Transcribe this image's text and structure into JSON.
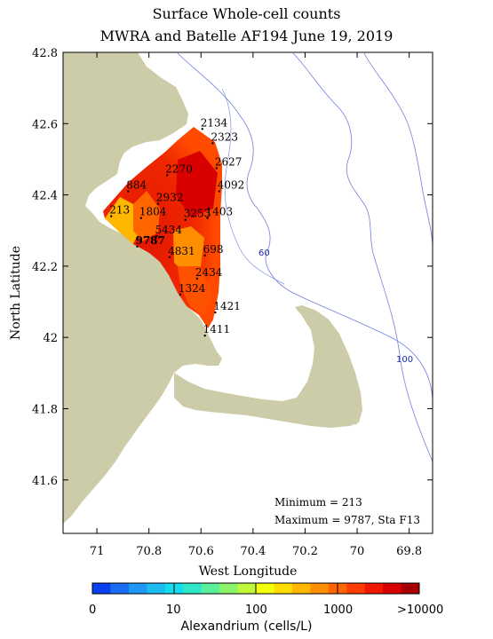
{
  "title_line1": "Surface Whole-cell counts",
  "title_line2": "MWRA and Batelle AF194 June 19, 2019",
  "map": {
    "xlabel": "West Longitude",
    "ylabel": "North Latitude",
    "x_ticks": [
      "71",
      "70.8",
      "70.6",
      "70.4",
      "70.2",
      "70",
      "69.8"
    ],
    "y_ticks": [
      "42.8",
      "42.6",
      "42.4",
      "42.2",
      "42",
      "41.8",
      "41.6"
    ],
    "x_range": [
      71.13,
      69.71
    ],
    "y_range": [
      41.45,
      42.8
    ],
    "depth_labels": [
      "60",
      "100"
    ],
    "land_color": "#cccca8",
    "contour_color": "#6f7fe0"
  },
  "stations": [
    {
      "value": "2134",
      "lon": 70.595,
      "lat": 42.585
    },
    {
      "value": "2323",
      "lon": 70.555,
      "lat": 42.545
    },
    {
      "value": "2627",
      "lon": 70.54,
      "lat": 42.475
    },
    {
      "value": "2270",
      "lon": 70.73,
      "lat": 42.455
    },
    {
      "value": "884",
      "lon": 70.88,
      "lat": 42.41
    },
    {
      "value": "4092",
      "lon": 70.53,
      "lat": 42.41
    },
    {
      "value": "2932",
      "lon": 70.765,
      "lat": 42.375
    },
    {
      "value": "1804",
      "lon": 70.83,
      "lat": 42.335
    },
    {
      "value": "213",
      "lon": 70.945,
      "lat": 42.34
    },
    {
      "value": "3253",
      "lon": 70.66,
      "lat": 42.33
    },
    {
      "value": "1403",
      "lon": 70.575,
      "lat": 42.335
    },
    {
      "value": "5434",
      "lon": 70.77,
      "lat": 42.285
    },
    {
      "value": "9787",
      "lon": 70.845,
      "lat": 42.255
    },
    {
      "value": "4831",
      "lon": 70.72,
      "lat": 42.225
    },
    {
      "value": "698",
      "lon": 70.585,
      "lat": 42.23
    },
    {
      "value": "2434",
      "lon": 70.615,
      "lat": 42.165
    },
    {
      "value": "1324",
      "lon": 70.68,
      "lat": 42.12
    },
    {
      "value": "1421",
      "lon": 70.545,
      "lat": 42.07
    },
    {
      "value": "1411",
      "lon": 70.585,
      "lat": 42.005
    }
  ],
  "stats": {
    "minimum": "Minimum = 213",
    "maximum": "Maximum = 9787, Sta F13"
  },
  "colorbar": {
    "title": "Alexandrium (cells/L)",
    "tick_labels": [
      "0",
      "10",
      "100",
      "1000",
      ">10000"
    ],
    "colors": [
      "#0a3ff0",
      "#1a6cf5",
      "#1e98f4",
      "#1dbcf0",
      "#13ddec",
      "#2de7c8",
      "#5cee9a",
      "#8cf46a",
      "#c0f83a",
      "#f4ff0b",
      "#ffdd00",
      "#ffb700",
      "#ff8f00",
      "#ff6600",
      "#ff3d00",
      "#f21800",
      "#d90000",
      "#a80000"
    ]
  }
}
